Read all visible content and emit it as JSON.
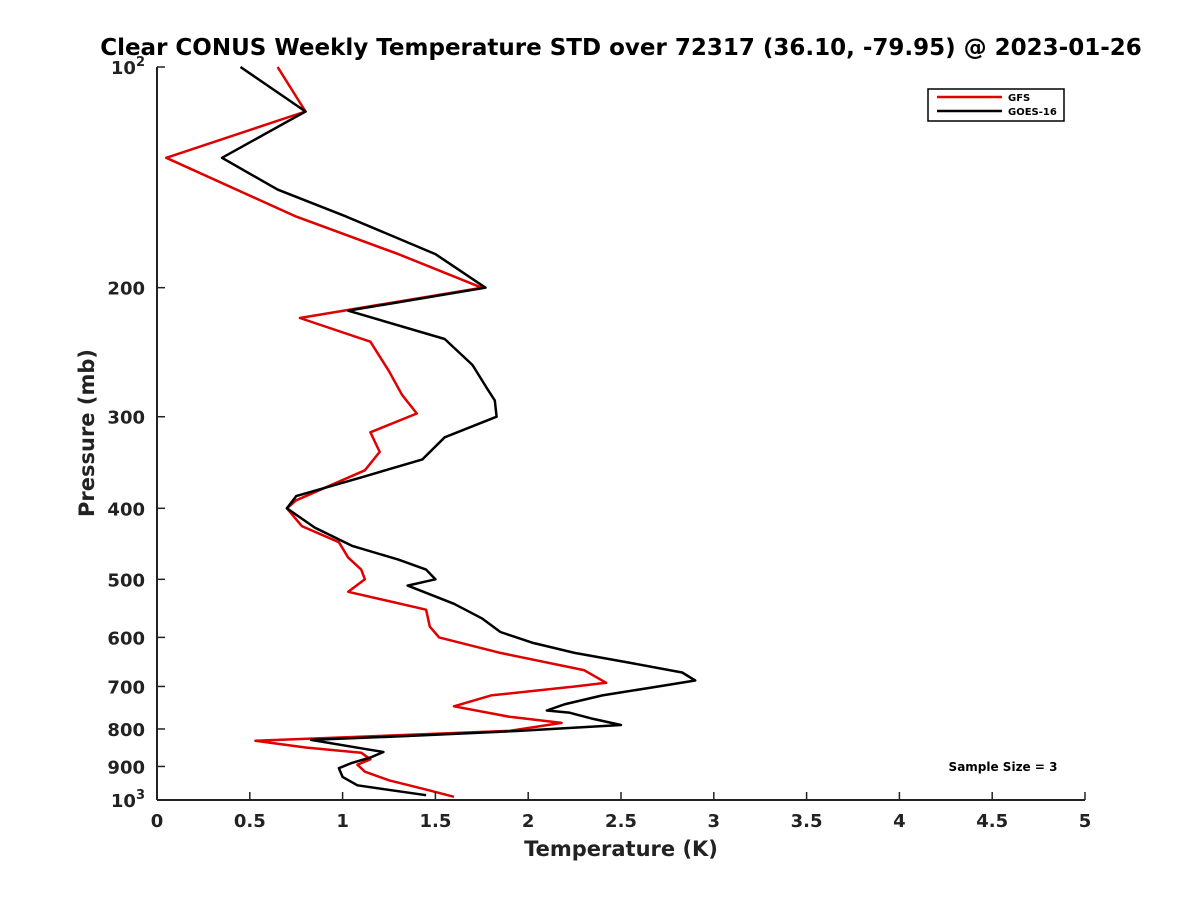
{
  "chart_data": {
    "type": "line",
    "title": "Clear CONUS Weekly Temperature STD over 72317 (36.10, -79.95) @ 2023-01-26",
    "xlabel": "Temperature (K)",
    "ylabel": "Pressure (mb)",
    "xlim": [
      0,
      5
    ],
    "ylim": [
      100,
      1000
    ],
    "y_scale": "log",
    "y_reversed": true,
    "grid": false,
    "legend_position": "top-right",
    "x_ticks": [
      0,
      0.5,
      1,
      1.5,
      2,
      2.5,
      3,
      3.5,
      4,
      4.5,
      5
    ],
    "x_tick_labels": [
      "0",
      "0.5",
      "1",
      "1.5",
      "2",
      "2.5",
      "3",
      "3.5",
      "4",
      "4.5",
      "5"
    ],
    "y_ticks": [
      {
        "value": 100,
        "base": "10",
        "exp": "2"
      },
      {
        "value": 200,
        "label": "200"
      },
      {
        "value": 300,
        "label": "300"
      },
      {
        "value": 400,
        "label": "400"
      },
      {
        "value": 500,
        "label": "500"
      },
      {
        "value": 600,
        "label": "600"
      },
      {
        "value": 700,
        "label": "700"
      },
      {
        "value": 800,
        "label": "800"
      },
      {
        "value": 900,
        "label": "900"
      },
      {
        "value": 1000,
        "base": "10",
        "exp": "3"
      }
    ],
    "annotation": "Sample Size = 3",
    "series": [
      {
        "name": "GFS",
        "color": "#e00000",
        "points": [
          [
            0.65,
            100
          ],
          [
            0.8,
            115
          ],
          [
            0.05,
            133
          ],
          [
            0.75,
            160
          ],
          [
            1.3,
            180
          ],
          [
            1.75,
            200
          ],
          [
            0.77,
            220
          ],
          [
            1.15,
            237
          ],
          [
            1.25,
            260
          ],
          [
            1.32,
            280
          ],
          [
            1.4,
            297
          ],
          [
            1.15,
            315
          ],
          [
            1.2,
            335
          ],
          [
            1.12,
            355
          ],
          [
            0.75,
            390
          ],
          [
            0.7,
            400
          ],
          [
            0.78,
            423
          ],
          [
            0.98,
            445
          ],
          [
            1.03,
            467
          ],
          [
            1.1,
            485
          ],
          [
            1.12,
            500
          ],
          [
            1.03,
            520
          ],
          [
            1.45,
            550
          ],
          [
            1.47,
            580
          ],
          [
            1.52,
            600
          ],
          [
            1.85,
            630
          ],
          [
            2.3,
            665
          ],
          [
            2.42,
            692
          ],
          [
            2.25,
            700
          ],
          [
            1.8,
            720
          ],
          [
            1.6,
            745
          ],
          [
            1.9,
            770
          ],
          [
            2.18,
            785
          ],
          [
            1.9,
            805
          ],
          [
            0.53,
            830
          ],
          [
            0.8,
            848
          ],
          [
            1.1,
            862
          ],
          [
            1.15,
            880
          ],
          [
            1.08,
            895
          ],
          [
            1.12,
            915
          ],
          [
            1.25,
            940
          ],
          [
            1.45,
            968
          ],
          [
            1.6,
            990
          ]
        ]
      },
      {
        "name": "GOES-16",
        "color": "#000000",
        "points": [
          [
            0.45,
            100
          ],
          [
            0.8,
            115
          ],
          [
            0.35,
            133
          ],
          [
            0.65,
            147
          ],
          [
            1.02,
            160
          ],
          [
            1.5,
            180
          ],
          [
            1.77,
            200
          ],
          [
            1.03,
            215
          ],
          [
            1.55,
            235
          ],
          [
            1.7,
            255
          ],
          [
            1.78,
            275
          ],
          [
            1.82,
            285
          ],
          [
            1.83,
            300
          ],
          [
            1.55,
            320
          ],
          [
            1.43,
            343
          ],
          [
            1.1,
            363
          ],
          [
            0.75,
            385
          ],
          [
            0.7,
            400
          ],
          [
            0.85,
            425
          ],
          [
            1.05,
            450
          ],
          [
            1.3,
            470
          ],
          [
            1.45,
            485
          ],
          [
            1.5,
            500
          ],
          [
            1.35,
            510
          ],
          [
            1.6,
            540
          ],
          [
            1.75,
            565
          ],
          [
            1.85,
            590
          ],
          [
            2.02,
            610
          ],
          [
            2.25,
            630
          ],
          [
            2.55,
            650
          ],
          [
            2.83,
            670
          ],
          [
            2.9,
            687
          ],
          [
            2.7,
            700
          ],
          [
            2.4,
            720
          ],
          [
            2.2,
            740
          ],
          [
            2.1,
            755
          ],
          [
            2.22,
            760
          ],
          [
            2.35,
            775
          ],
          [
            2.5,
            790
          ],
          [
            1.95,
            805
          ],
          [
            1.35,
            818
          ],
          [
            0.83,
            828
          ],
          [
            1.1,
            850
          ],
          [
            1.22,
            860
          ],
          [
            1.15,
            875
          ],
          [
            1.05,
            890
          ],
          [
            0.98,
            905
          ],
          [
            1.0,
            930
          ],
          [
            1.08,
            955
          ],
          [
            1.45,
            985
          ]
        ]
      }
    ]
  }
}
